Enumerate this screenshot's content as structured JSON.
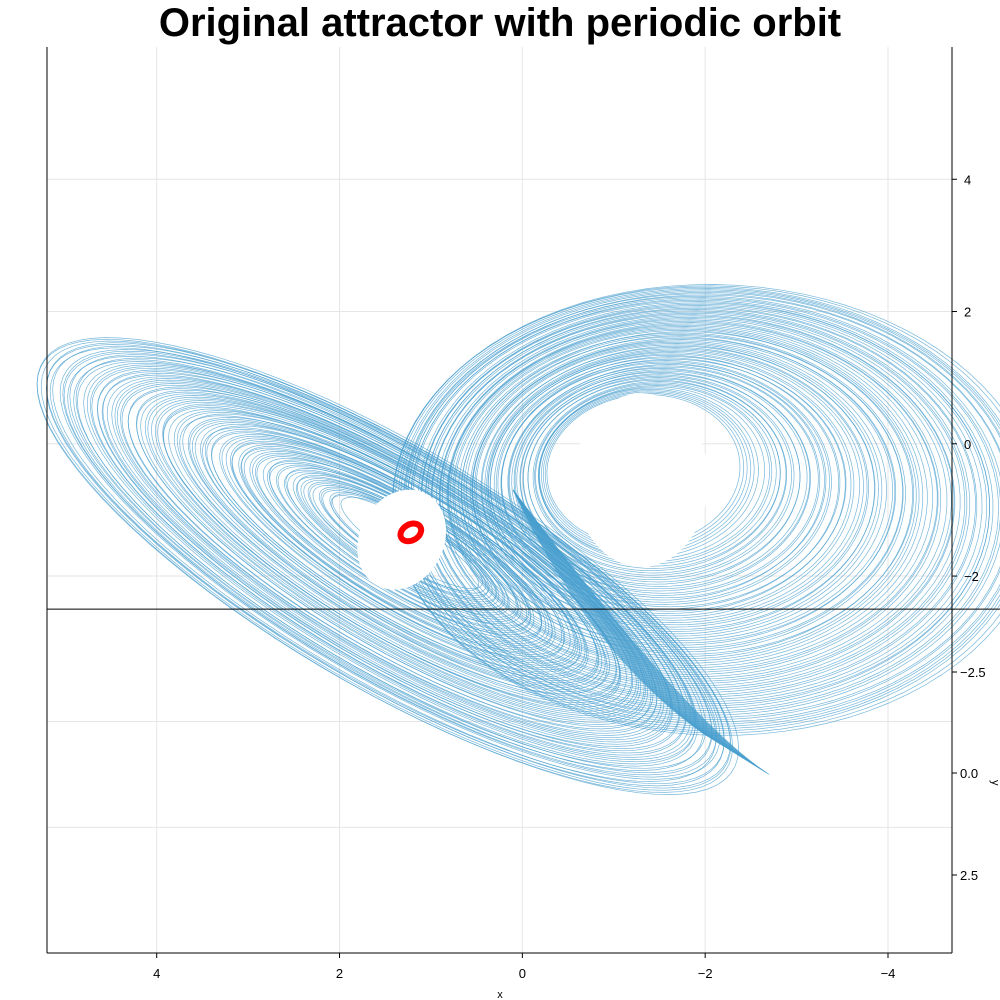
{
  "chart_data": {
    "type": "line",
    "title": "Original attractor with periodic orbit",
    "xlabel": "x",
    "ylabel": "y",
    "xlim": [
      5.2,
      -4.7
    ],
    "ylim": [
      -7.7,
      6.0
    ],
    "x_reversed": true,
    "grid": true,
    "x_ticks": [
      4,
      2,
      0,
      -2,
      -4
    ],
    "x_tick_labels": [
      "4",
      "2",
      "0",
      "−2",
      "−4"
    ],
    "y_ticks": [
      4,
      2,
      0,
      -2
    ],
    "y_tick_labels": [
      "4",
      "2",
      "0",
      "−2"
    ],
    "z_axis_tick_labels": [
      "−2.5",
      "0.0",
      "2.5"
    ],
    "baseline_y": -2.5,
    "series": [
      {
        "color": "#4a9fcf",
        "kind": "attractor-trajectory",
        "left_lobe_center": [
          1.4,
          -1.5
        ],
        "right_lobe_center": [
          -1.3,
          -0.5
        ],
        "x_extent": [
          5.2,
          -4.7
        ],
        "y_extent": [
          -5.9,
          3.9
        ]
      },
      {
        "color": "#ff0000",
        "kind": "periodic-orbit",
        "center": [
          1.22,
          -1.34
        ],
        "radius_x": 0.12,
        "radius_y": 0.14
      }
    ]
  }
}
